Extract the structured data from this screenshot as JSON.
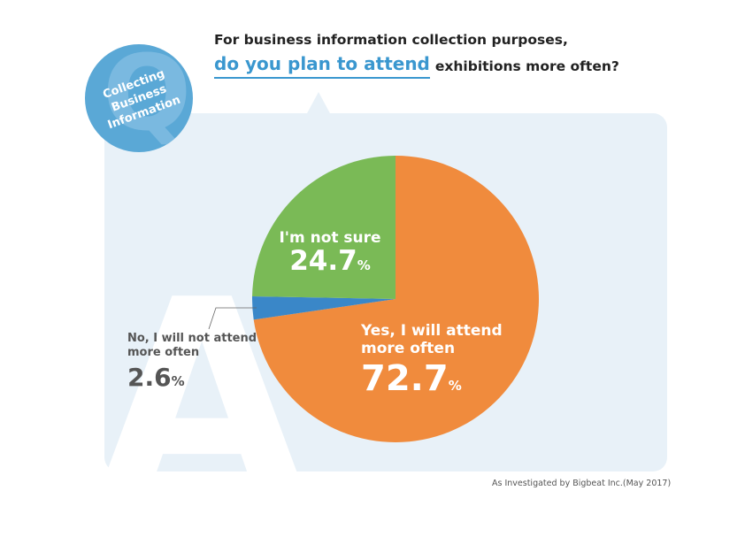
{
  "badge": {
    "letter": "Q",
    "lines": [
      "Collecting",
      "Business",
      "Information"
    ]
  },
  "answer_letter": "A",
  "heading": {
    "line1": "For business information collection purposes,",
    "highlight": "do you plan to attend",
    "rest": "exhibitions more often?"
  },
  "chart_data": {
    "type": "pie",
    "unit": "%",
    "slices": [
      {
        "label_lines": [
          "Yes, I will attend",
          "more often"
        ],
        "value": 72.7,
        "value_text": "72.7",
        "color": "#f08b3d"
      },
      {
        "label_lines": [
          "No, I will not attend",
          "more often"
        ],
        "value": 2.6,
        "value_text": "2.6",
        "color": "#3a87c8"
      },
      {
        "label_lines": [
          "I'm not sure"
        ],
        "value": 24.7,
        "value_text": "24.7",
        "color": "#7aba56"
      }
    ]
  },
  "source": "As Investigated by Bigbeat Inc.(May 2017)"
}
